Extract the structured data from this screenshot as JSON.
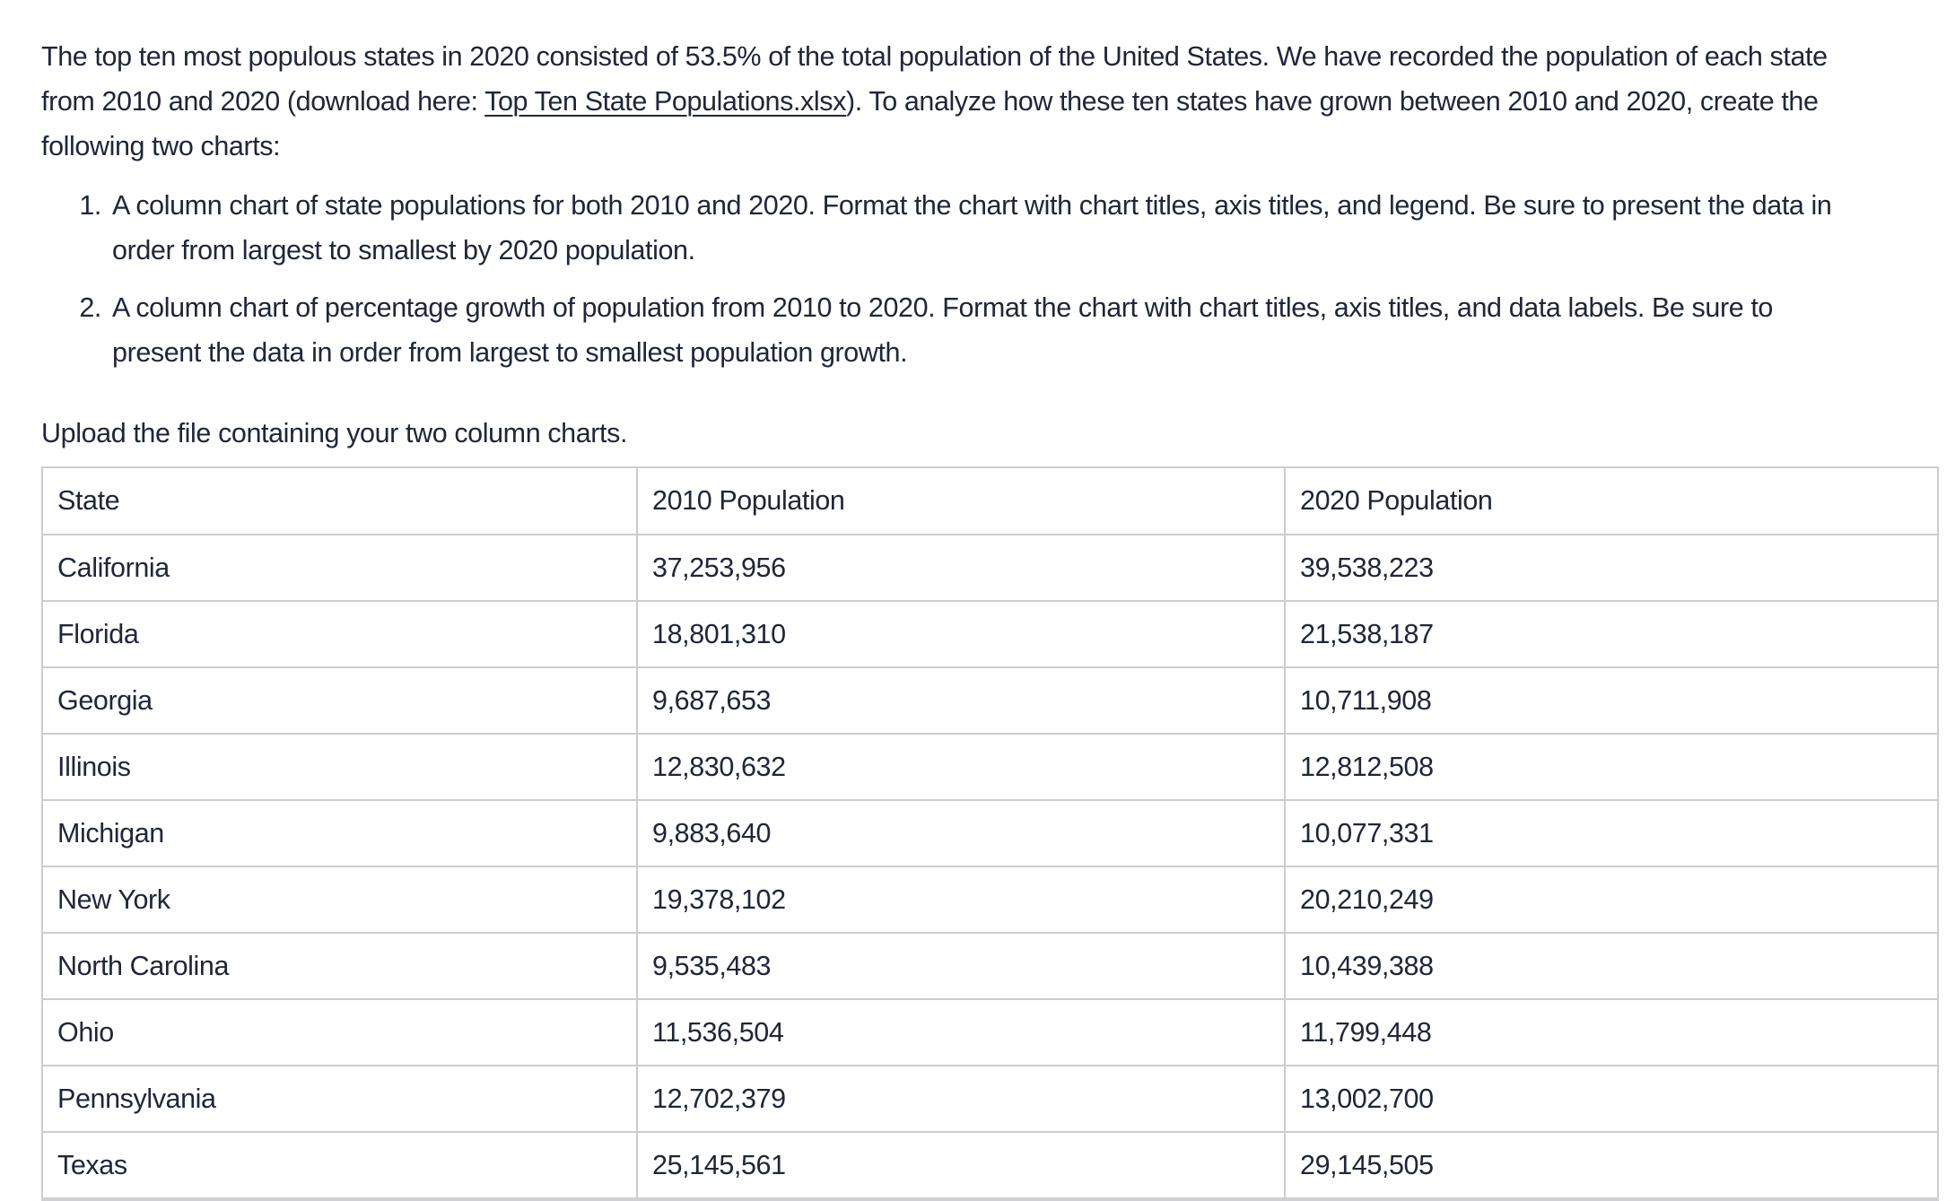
{
  "page": {
    "background_color": "#ffffff",
    "text_color": "#20263a",
    "table_border_color": "#cdcdcd"
  },
  "intro": {
    "line1": "The top ten most populous states in 2020 consisted of 53.5% of the total population of the United States. We have recorded the population of each state",
    "line2_before_link": "from 2010 and 2020 (download here: ",
    "link_text": "Top Ten State Populations.xlsx",
    "line2_after_link": "). To analyze how these ten states have grown between 2010 and 2020, create the",
    "line3": "following two charts:"
  },
  "tasks": [
    {
      "number": "1.",
      "line1": "A column chart of state populations for both 2010 and 2020. Format the chart with chart titles, axis titles, and legend. Be sure to present the data in",
      "line2": "order from largest to smallest by 2020 population."
    },
    {
      "number": "2.",
      "line1": "A column chart of percentage growth of population from 2010 to 2020. Format the chart with chart titles, axis titles, and data labels. Be sure to",
      "line2": "present the data in order from largest to smallest population growth."
    }
  ],
  "upload_instruction": "Upload the file containing your two column charts.",
  "table": {
    "headers": [
      "State",
      "2010 Population",
      "2020 Population"
    ],
    "rows": [
      [
        "California",
        "37,253,956",
        "39,538,223"
      ],
      [
        "Florida",
        "18,801,310",
        "21,538,187"
      ],
      [
        "Georgia",
        "9,687,653",
        "10,711,908"
      ],
      [
        "Illinois",
        "12,830,632",
        "12,812,508"
      ],
      [
        "Michigan",
        "9,883,640",
        "10,077,331"
      ],
      [
        "New York",
        "19,378,102",
        "20,210,249"
      ],
      [
        "North Carolina",
        "9,535,483",
        "10,439,388"
      ],
      [
        "Ohio",
        "11,536,504",
        "11,799,448"
      ],
      [
        "Pennsylvania",
        "12,702,379",
        "13,002,700"
      ],
      [
        "Texas",
        "25,145,561",
        "29,145,505"
      ]
    ]
  }
}
